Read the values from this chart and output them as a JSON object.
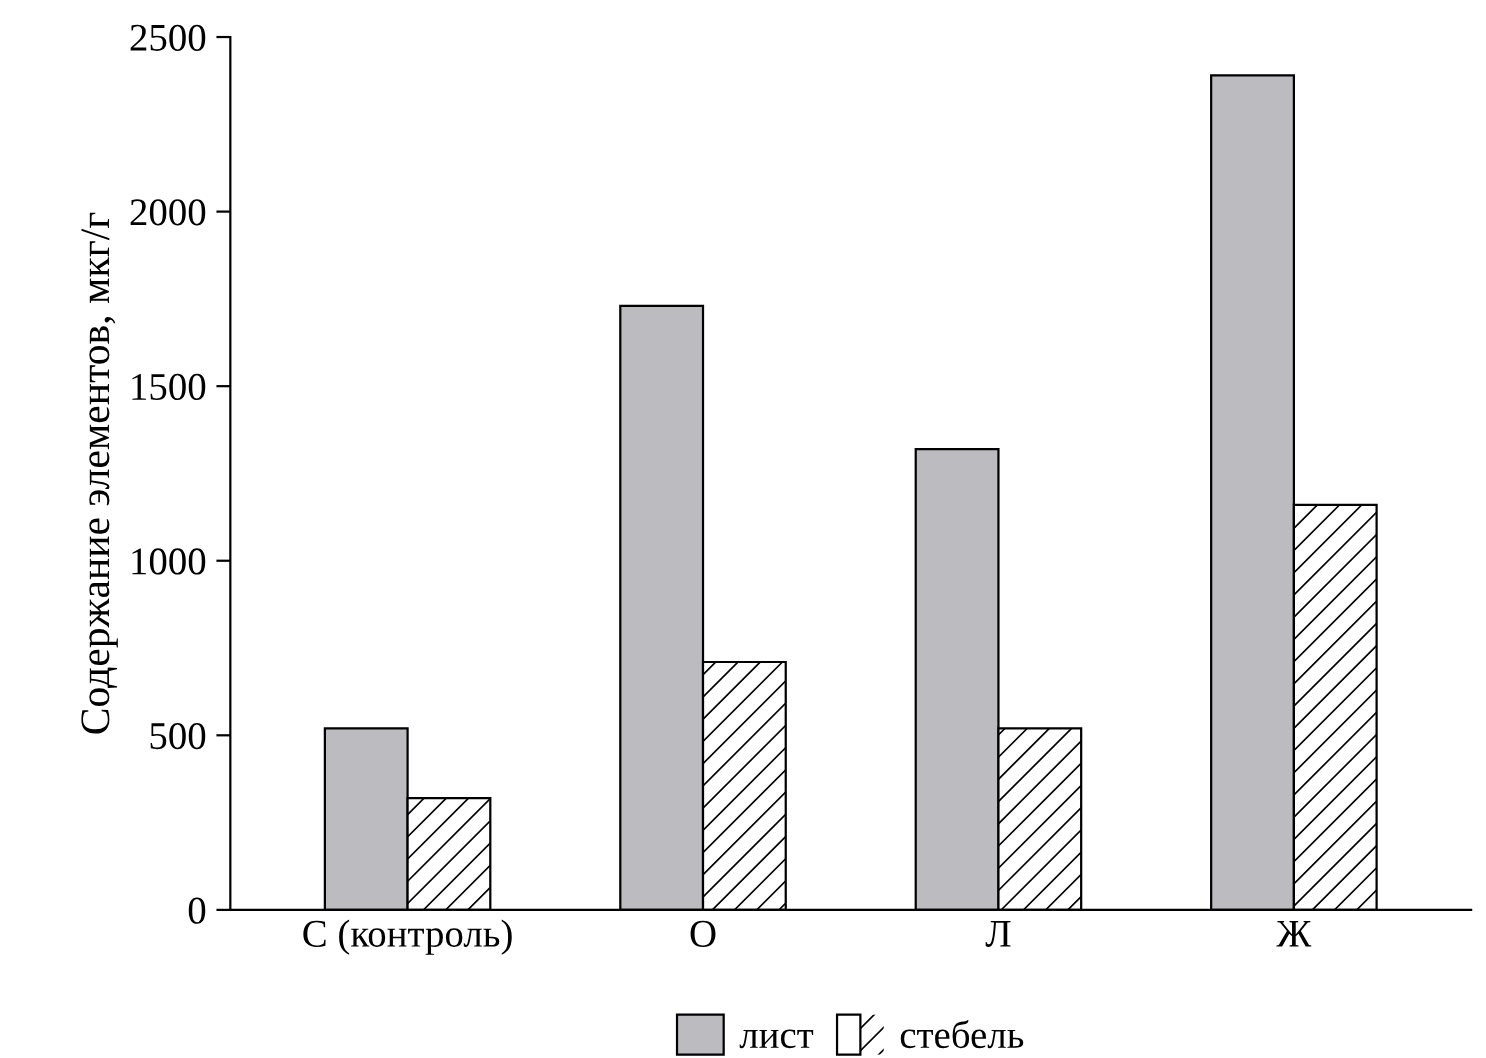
{
  "chart_data": {
    "type": "bar",
    "ylabel": "Содержание элементов, мкг/г",
    "categories": [
      "С (контроль)",
      "О",
      "Л",
      "Ж"
    ],
    "series": [
      {
        "name": "лист",
        "color": "#bcbcc0",
        "values": [
          520,
          1730,
          1320,
          2390
        ]
      },
      {
        "name": "стебель",
        "color": "#ffffff",
        "values": [
          320,
          710,
          520,
          1160
        ]
      }
    ],
    "ylim": [
      0,
      2500
    ],
    "yticks": [
      0,
      500,
      1000,
      1500,
      2000,
      2500
    ],
    "grid": false,
    "legend": "bottom"
  }
}
